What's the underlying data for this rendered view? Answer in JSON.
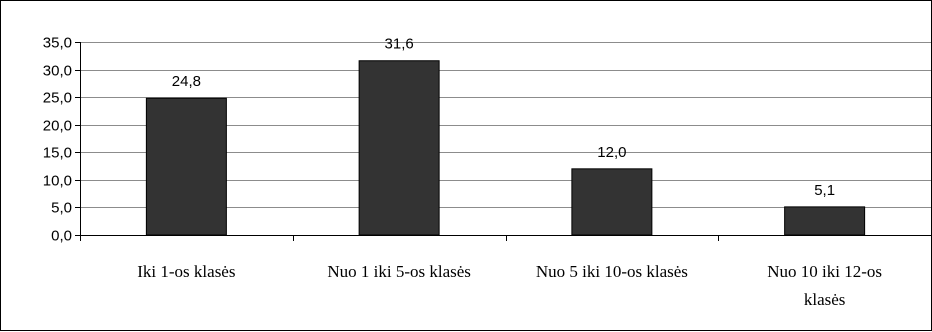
{
  "chart_data": {
    "type": "bar",
    "categories": [
      [
        "Iki 1-os klasės"
      ],
      [
        "Nuo 1 iki 5-os klasės"
      ],
      [
        "Nuo 5 iki 10-os klasės"
      ],
      [
        "Nuo 10 iki 12-os",
        "klasės"
      ]
    ],
    "values": [
      24.8,
      31.6,
      12.0,
      5.1
    ],
    "value_labels": [
      "24,8",
      "31,6",
      "12,0",
      "5,1"
    ],
    "y_ticks": [
      "0,0",
      "5,0",
      "10,0",
      "15,0",
      "20,0",
      "25,0",
      "30,0",
      "35,0"
    ],
    "ylim": [
      0,
      35
    ],
    "grid": true,
    "legend": "none",
    "title": "",
    "xlabel": "",
    "ylabel": "",
    "colors": {
      "bar": "#333333",
      "grid": "#8c8c8c",
      "axis": "#000000",
      "frame": "#000000"
    }
  }
}
